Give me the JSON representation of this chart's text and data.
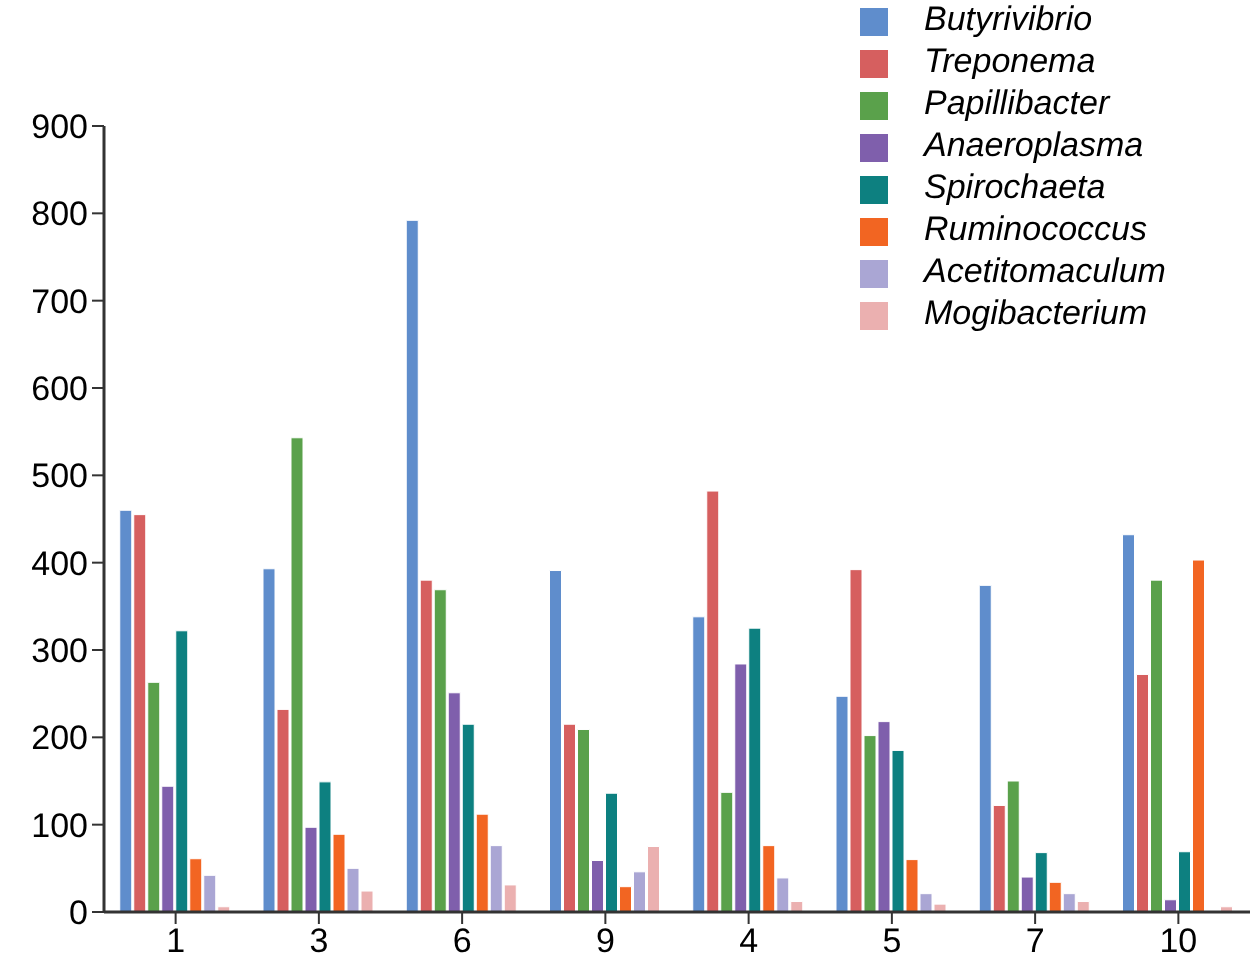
{
  "chart_data": {
    "type": "bar",
    "categories": [
      "1",
      "3",
      "6",
      "9",
      "4",
      "5",
      "7",
      "10"
    ],
    "series": [
      {
        "name": "Butyrivibrio",
        "color": "#5f8dcc",
        "values": [
          460,
          393,
          792,
          391,
          338,
          247,
          374,
          432
        ]
      },
      {
        "name": "Treponema",
        "color": "#d65f5f",
        "values": [
          455,
          232,
          380,
          215,
          482,
          392,
          122,
          272
        ]
      },
      {
        "name": "Papillibacter",
        "color": "#5aa14b",
        "values": [
          263,
          543,
          369,
          209,
          137,
          202,
          150,
          380
        ]
      },
      {
        "name": "Anaeroplasma",
        "color": "#7f5fac",
        "values": [
          144,
          97,
          251,
          59,
          284,
          218,
          40,
          14
        ]
      },
      {
        "name": "Spirochaeta",
        "color": "#0d8080",
        "values": [
          322,
          149,
          215,
          136,
          325,
          185,
          68,
          69
        ]
      },
      {
        "name": "Ruminococcus",
        "color": "#f26522",
        "values": [
          61,
          89,
          112,
          29,
          76,
          60,
          34,
          403
        ]
      },
      {
        "name": "Acetitomaculum",
        "color": "#aaa6d4",
        "values": [
          42,
          50,
          76,
          46,
          39,
          21,
          21,
          0
        ]
      },
      {
        "name": "Mogibacterium",
        "color": "#ebb0b0",
        "values": [
          6,
          24,
          31,
          75,
          12,
          9,
          12,
          6
        ]
      }
    ],
    "ylim": [
      0,
      900
    ],
    "yticks": [
      0,
      100,
      200,
      300,
      400,
      500,
      600,
      700,
      800,
      900
    ],
    "grid": false,
    "legend": "top right"
  }
}
